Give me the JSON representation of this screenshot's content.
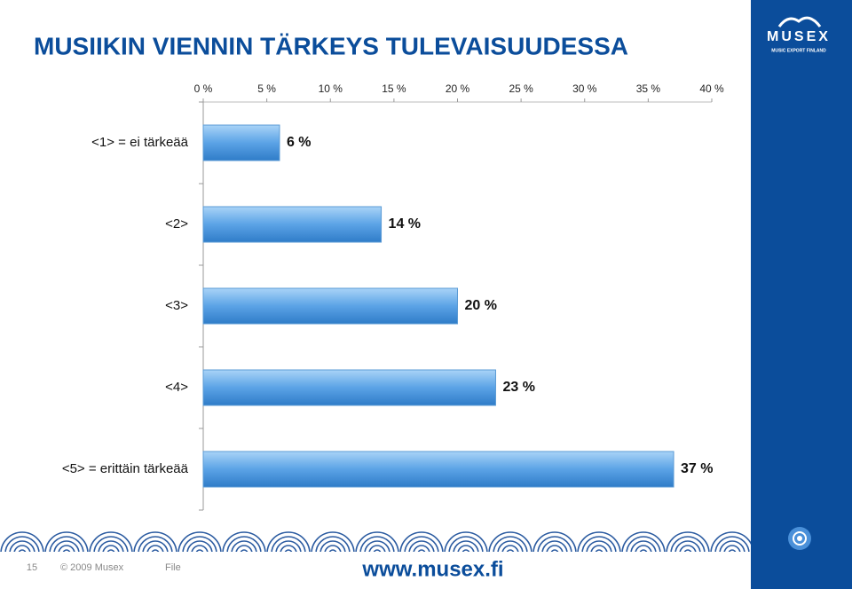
{
  "slide": {
    "title": "MUSIIKIN VIENNIN TÄRKEYS TULEVAISUUDESSA",
    "logo": "MUSEX",
    "logo_subtitle": "MUSIC EXPORT FINLAND",
    "page_number": "15",
    "copyright": "© 2009 Musex",
    "file": "File",
    "url": "www.musex.fi"
  },
  "chart_data": {
    "type": "bar",
    "orientation": "horizontal",
    "categories": [
      "<1> = ei tärkeää",
      "<2>",
      "<3>",
      "<4>",
      "<5> = erittäin tärkeää"
    ],
    "values": [
      6,
      14,
      20,
      23,
      37
    ],
    "value_labels": [
      "6 %",
      "14 %",
      "20 %",
      "23 %",
      "37 %"
    ],
    "color": "#4a90d9",
    "xlim": [
      0,
      40
    ],
    "xticks": [
      {
        "value": 0,
        "label": "0 %"
      },
      {
        "value": 5,
        "label": "5 %"
      },
      {
        "value": 10,
        "label": "10 %"
      },
      {
        "value": 15,
        "label": "15 %"
      },
      {
        "value": 20,
        "label": "20 %"
      },
      {
        "value": 25,
        "label": "25 %"
      },
      {
        "value": 30,
        "label": "30 %"
      },
      {
        "value": 35,
        "label": "35 %"
      },
      {
        "value": 40,
        "label": "40 %"
      }
    ],
    "grid": false
  }
}
